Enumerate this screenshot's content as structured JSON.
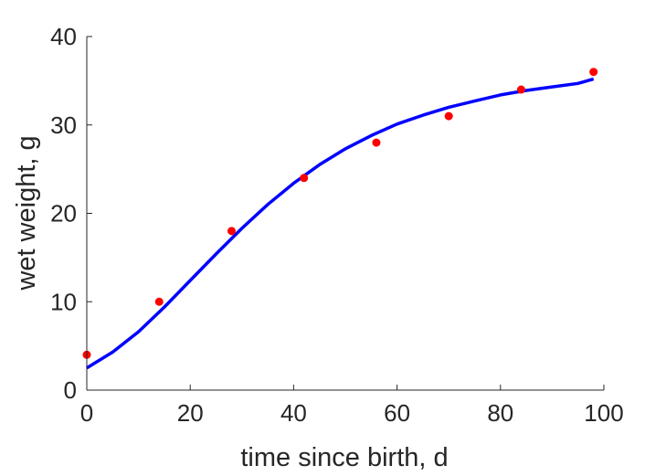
{
  "chart_data": {
    "type": "scatter",
    "title": "",
    "xlabel": "time since birth, d",
    "ylabel": "wet weight, g",
    "xlim": [
      0,
      100
    ],
    "ylim": [
      0,
      40
    ],
    "xticks": [
      0,
      20,
      40,
      60,
      80,
      100
    ],
    "yticks": [
      0,
      10,
      20,
      30,
      40
    ],
    "grid": false,
    "legend": "none",
    "series": [
      {
        "kind": "points",
        "color": "#ff0000",
        "x": [
          0,
          14,
          28,
          42,
          56,
          70,
          84,
          98
        ],
        "y": [
          4.0,
          10.0,
          18.0,
          24.0,
          28.0,
          31.0,
          34.0,
          36.0
        ]
      },
      {
        "kind": "line",
        "color": "#0000ff",
        "x": [
          0,
          5,
          10,
          15,
          20,
          25,
          30,
          35,
          40,
          45,
          50,
          55,
          60,
          65,
          70,
          75,
          80,
          85,
          90,
          95,
          98
        ],
        "y": [
          2.5,
          4.3,
          6.6,
          9.4,
          12.4,
          15.4,
          18.3,
          21.0,
          23.4,
          25.5,
          27.3,
          28.8,
          30.1,
          31.1,
          32.0,
          32.7,
          33.4,
          33.9,
          34.3,
          34.7,
          35.2
        ]
      }
    ]
  }
}
